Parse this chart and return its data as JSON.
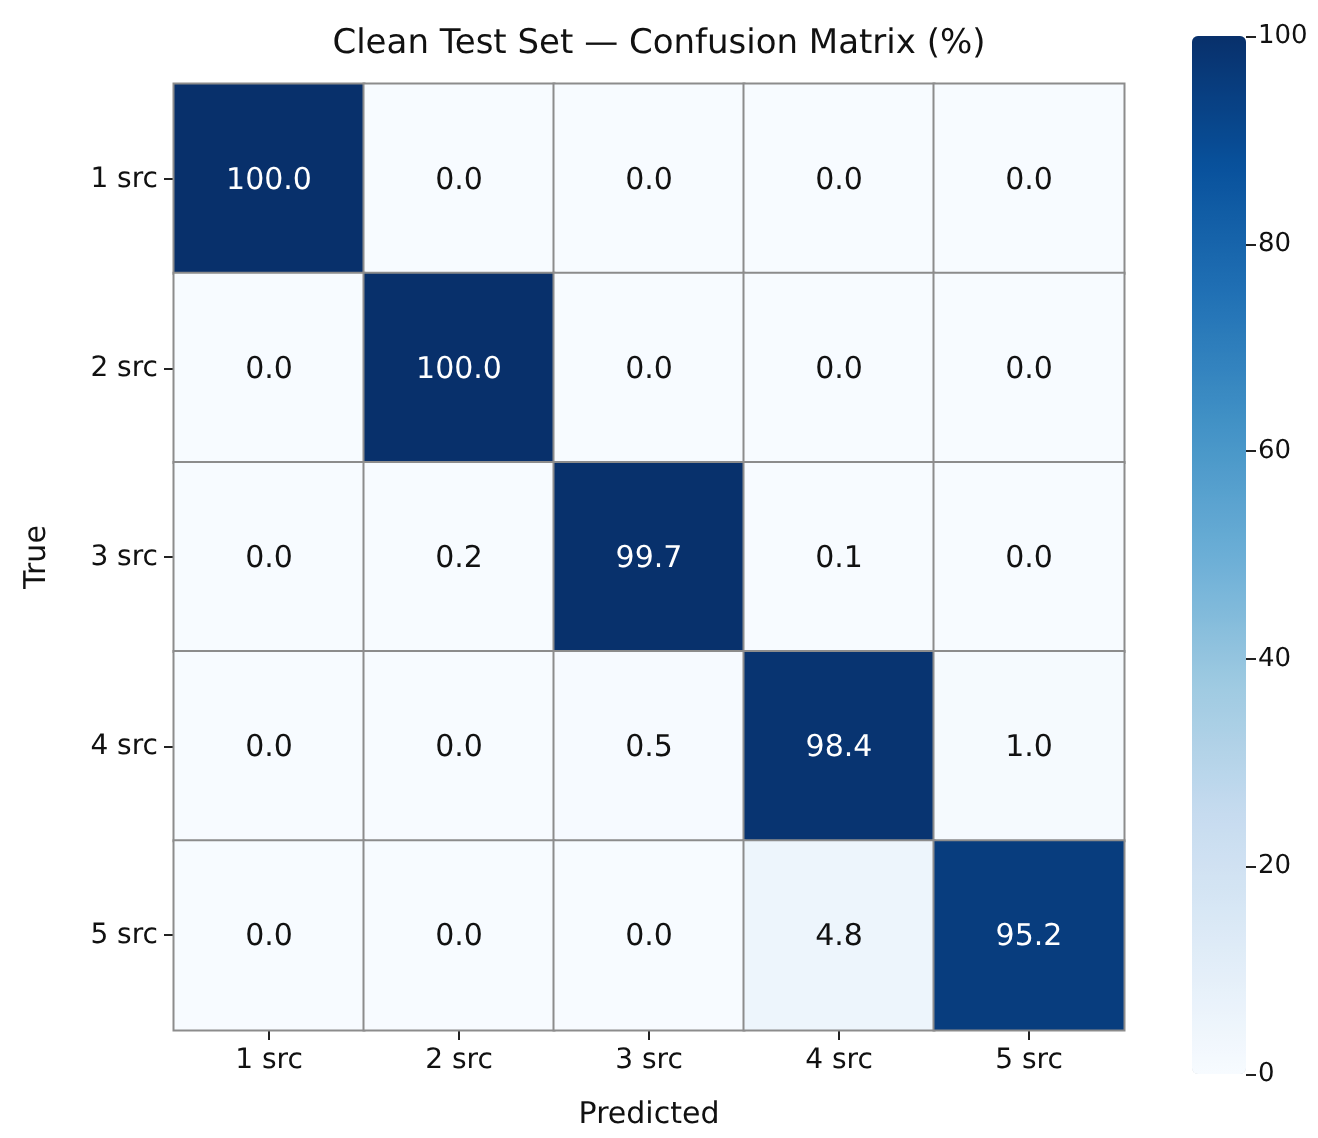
{
  "chart_data": {
    "type": "heatmap",
    "title": "Clean Test Set — Confusion Matrix (%)",
    "xlabel": "Predicted",
    "ylabel": "True",
    "categories": [
      "1 src",
      "2 src",
      "3 src",
      "4 src",
      "5 src"
    ],
    "y_categories": [
      "1 src",
      "2 src",
      "3 src",
      "4 src",
      "5 src"
    ],
    "cells": [
      [
        100.0,
        0.0,
        0.0,
        0.0,
        0.0
      ],
      [
        0.0,
        100.0,
        0.0,
        0.0,
        0.0
      ],
      [
        0.0,
        0.2,
        99.7,
        0.1,
        0.0
      ],
      [
        0.0,
        0.0,
        0.5,
        98.4,
        1.0
      ],
      [
        0.0,
        0.0,
        0.0,
        4.8,
        95.2
      ]
    ],
    "cell_labels": [
      [
        "100.0",
        "0.0",
        "0.0",
        "0.0",
        "0.0"
      ],
      [
        "0.0",
        "100.0",
        "0.0",
        "0.0",
        "0.0"
      ],
      [
        "0.0",
        "0.2",
        "99.7",
        "0.1",
        "0.0"
      ],
      [
        "0.0",
        "0.0",
        "0.5",
        "98.4",
        "1.0"
      ],
      [
        "0.0",
        "0.0",
        "0.0",
        "4.8",
        "95.2"
      ]
    ],
    "clim": [
      0,
      100
    ],
    "cticks": [
      0,
      20,
      40,
      60,
      80,
      100
    ]
  }
}
